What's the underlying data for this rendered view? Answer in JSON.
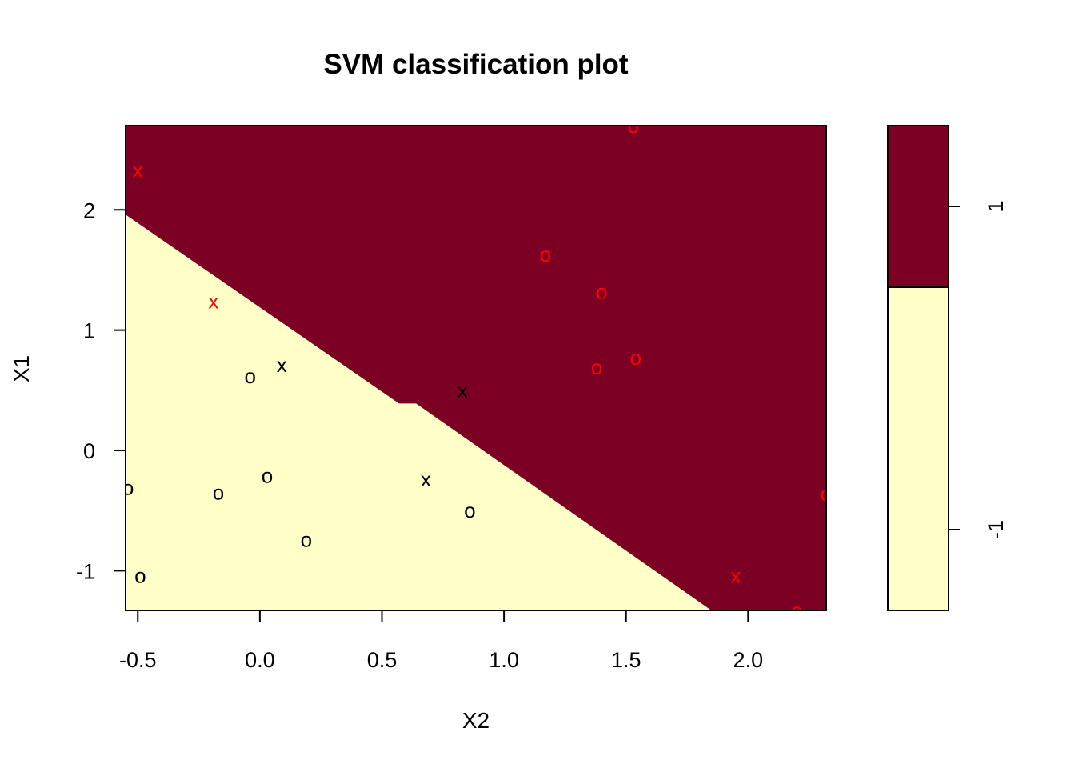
{
  "chart_data": {
    "type": "scatter",
    "title": "SVM classification plot",
    "xlabel": "X2",
    "ylabel": "X1",
    "xlim": [
      -0.55,
      2.32
    ],
    "ylim": [
      -1.33,
      2.7
    ],
    "xticks": [
      -0.5,
      0.0,
      0.5,
      1.0,
      1.5,
      2.0
    ],
    "xtick_labels": [
      "-0.5",
      "0.0",
      "0.5",
      "1.0",
      "1.5",
      "2.0"
    ],
    "yticks": [
      -1,
      0,
      1,
      2
    ],
    "ytick_labels": [
      "-1",
      "0",
      "1",
      "2"
    ],
    "colors": {
      "class_1": "#7c0024",
      "class_neg1": "#ffffc8",
      "red": "#ff0000",
      "black": "#000000"
    },
    "regions": {
      "class_1_label": "1",
      "class_neg1_label": "-1",
      "boundary": [
        {
          "x": -0.55,
          "y": 1.96
        },
        {
          "x": 0.57,
          "y": 0.39
        },
        {
          "x": 0.64,
          "y": 0.39
        },
        {
          "x": 1.85,
          "y": -1.33
        }
      ]
    },
    "legend": {
      "placement": "right",
      "levels": [
        "1",
        "-1"
      ],
      "split_value": 0.5
    },
    "points": [
      {
        "x": 1.53,
        "y": 2.7,
        "symbol": "o",
        "color": "red"
      },
      {
        "x": -0.5,
        "y": 2.33,
        "symbol": "x",
        "color": "red"
      },
      {
        "x": 1.17,
        "y": 1.63,
        "symbol": "o",
        "color": "red"
      },
      {
        "x": 1.4,
        "y": 1.32,
        "symbol": "o",
        "color": "red"
      },
      {
        "x": -0.19,
        "y": 1.24,
        "symbol": "x",
        "color": "red"
      },
      {
        "x": 1.54,
        "y": 0.77,
        "symbol": "o",
        "color": "red"
      },
      {
        "x": 1.38,
        "y": 0.69,
        "symbol": "o",
        "color": "red"
      },
      {
        "x": 0.09,
        "y": 0.71,
        "symbol": "x",
        "color": "black"
      },
      {
        "x": -0.04,
        "y": 0.62,
        "symbol": "o",
        "color": "black"
      },
      {
        "x": 0.83,
        "y": 0.5,
        "symbol": "x",
        "color": "black"
      },
      {
        "x": 0.03,
        "y": -0.21,
        "symbol": "o",
        "color": "black"
      },
      {
        "x": -0.54,
        "y": -0.31,
        "symbol": "o",
        "color": "black"
      },
      {
        "x": -0.17,
        "y": -0.35,
        "symbol": "o",
        "color": "black"
      },
      {
        "x": 0.68,
        "y": -0.24,
        "symbol": "x",
        "color": "black"
      },
      {
        "x": 0.86,
        "y": -0.5,
        "symbol": "o",
        "color": "black"
      },
      {
        "x": 0.19,
        "y": -0.74,
        "symbol": "o",
        "color": "black"
      },
      {
        "x": -0.49,
        "y": -1.04,
        "symbol": "o",
        "color": "black"
      },
      {
        "x": 2.32,
        "y": -0.36,
        "symbol": "o",
        "color": "red"
      },
      {
        "x": 1.95,
        "y": -1.04,
        "symbol": "x",
        "color": "red"
      },
      {
        "x": 2.2,
        "y": -1.33,
        "symbol": "o",
        "color": "red"
      }
    ]
  }
}
